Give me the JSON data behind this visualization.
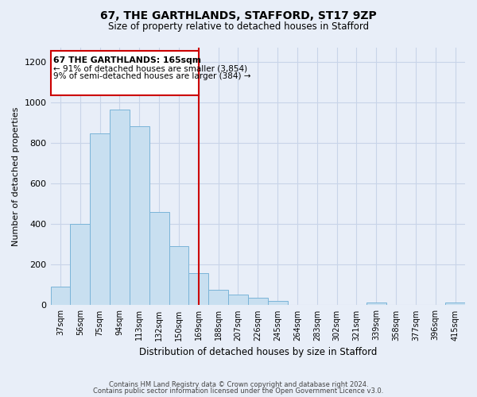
{
  "title": "67, THE GARTHLANDS, STAFFORD, ST17 9ZP",
  "subtitle": "Size of property relative to detached houses in Stafford",
  "xlabel": "Distribution of detached houses by size in Stafford",
  "ylabel": "Number of detached properties",
  "bar_labels": [
    "37sqm",
    "56sqm",
    "75sqm",
    "94sqm",
    "113sqm",
    "132sqm",
    "150sqm",
    "169sqm",
    "188sqm",
    "207sqm",
    "226sqm",
    "245sqm",
    "264sqm",
    "283sqm",
    "302sqm",
    "321sqm",
    "339sqm",
    "358sqm",
    "377sqm",
    "396sqm",
    "415sqm"
  ],
  "bar_values": [
    90,
    400,
    848,
    965,
    883,
    458,
    293,
    160,
    75,
    52,
    35,
    20,
    0,
    0,
    0,
    0,
    13,
    0,
    0,
    0,
    13
  ],
  "bar_color": "#c8dff0",
  "bar_edge_color": "#7ab4d8",
  "vline_index": 7,
  "vline_color": "#cc0000",
  "annotation_title": "67 THE GARTHLANDS: 165sqm",
  "annotation_line1": "← 91% of detached houses are smaller (3,854)",
  "annotation_line2": "9% of semi-detached houses are larger (384) →",
  "annotation_box_color": "#ffffff",
  "annotation_box_edge": "#cc0000",
  "ylim": [
    0,
    1270
  ],
  "yticks": [
    0,
    200,
    400,
    600,
    800,
    1000,
    1200
  ],
  "footer_line1": "Contains HM Land Registry data © Crown copyright and database right 2024.",
  "footer_line2": "Contains public sector information licensed under the Open Government Licence v3.0.",
  "bg_color": "#e8eef8",
  "plot_bg_color": "#e8eef8",
  "grid_color": "#c8d4e8"
}
